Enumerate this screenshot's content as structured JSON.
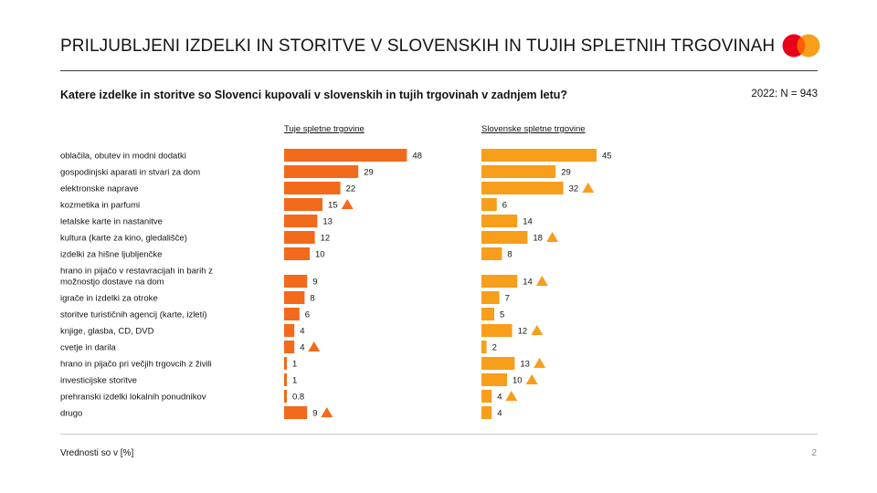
{
  "header": {
    "title": "PRILJUBLJENI IZDELKI IN STORITVE V SLOVENSKIH IN TUJIH SPLETNIH TRGOVINAH",
    "question": "Katere izdelke in storitve so Slovenci kupovali v slovenskih in tujih trgovinah  v zadnjem letu?",
    "sample": "2022: N = 943"
  },
  "brand": {
    "logo_colors": [
      "#eb001b",
      "#f79e1b",
      "#ff5f00"
    ]
  },
  "chart_data": {
    "type": "bar",
    "orientation": "horizontal",
    "categories": [
      "oblačila, obutev in modni dodatki",
      "gospodinjski aparati in stvari za dom",
      "elektronske naprave",
      "kozmetika in parfumi",
      "letalske karte in nastanitve",
      "kultura (karte za kino, gledališče)",
      "izdelki za hišne ljubljenčke",
      "hrano in pijačo v restavracijah in barih z možnostjo dostave na dom",
      "igrače in izdelki za otroke",
      "storitve turističnih agencij (karte, izleti)",
      "knjige, glasba, CD, DVD",
      "cvetje in darila",
      "hrano in pijačo pri večjih trgovcih z živili",
      "investicijske storitve",
      "prehranski izdelki lokalnih ponudnikov",
      "drugo"
    ],
    "series": [
      {
        "name": "Tuje spletne trgovine",
        "color": "#f26a1b",
        "values": [
          48,
          29,
          22,
          15,
          13,
          12,
          10,
          9,
          8,
          6,
          4,
          4,
          1,
          1,
          0.8,
          9
        ],
        "labels": [
          "48",
          "29",
          "22",
          "15",
          "13",
          "12",
          "10",
          "9",
          "8",
          "6",
          "4",
          "4",
          "1",
          "1",
          "0.8",
          "9"
        ],
        "increase_marker": [
          false,
          false,
          false,
          true,
          false,
          false,
          false,
          false,
          false,
          false,
          false,
          true,
          false,
          false,
          false,
          true
        ]
      },
      {
        "name": "Slovenske spletne trgovine",
        "color": "#f79e1b",
        "values": [
          45,
          29,
          32,
          6,
          14,
          18,
          8,
          14,
          7,
          5,
          12,
          2,
          13,
          10,
          4,
          4
        ],
        "labels": [
          "45",
          "29",
          "32",
          "6",
          "14",
          "18",
          "8",
          "14",
          "7",
          "5",
          "12",
          "2",
          "13",
          "10",
          "4",
          "4"
        ],
        "increase_marker": [
          false,
          false,
          true,
          false,
          false,
          true,
          false,
          true,
          false,
          false,
          true,
          false,
          true,
          true,
          true,
          false
        ]
      }
    ],
    "marker_colors": {
      "Tuje spletne trgovine": "#f26a1b",
      "Slovenske spletne trgovine": "#f79e1b"
    },
    "xlim": [
      0,
      50
    ],
    "grid": false,
    "legend": "column headers above bars"
  },
  "footer": {
    "note": "Vrednosti so v [%]",
    "page": "2"
  }
}
